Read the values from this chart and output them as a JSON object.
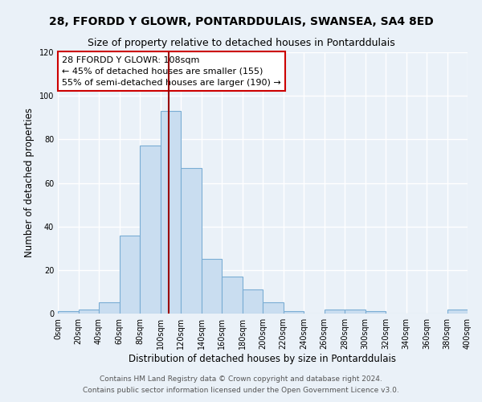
{
  "title": "28, FFORDD Y GLOWR, PONTARDDULAIS, SWANSEA, SA4 8ED",
  "subtitle": "Size of property relative to detached houses in Pontarddulais",
  "xlabel": "Distribution of detached houses by size in Pontarddulais",
  "ylabel": "Number of detached properties",
  "bar_color": "#c9ddf0",
  "bar_edge_color": "#7aadd4",
  "bg_color": "#eaf1f8",
  "grid_color": "#ffffff",
  "bin_edges": [
    0,
    20,
    40,
    60,
    80,
    100,
    120,
    140,
    160,
    180,
    200,
    220,
    240,
    260,
    280,
    300,
    320,
    340,
    360,
    380,
    400
  ],
  "bar_heights": [
    1,
    2,
    5,
    36,
    77,
    93,
    67,
    25,
    17,
    11,
    5,
    1,
    0,
    2,
    2,
    1,
    0,
    0,
    0,
    2
  ],
  "vline_x": 108,
  "vline_color": "#990000",
  "annotation_title": "28 FFORDD Y GLOWR: 108sqm",
  "annotation_line1": "← 45% of detached houses are smaller (155)",
  "annotation_line2": "55% of semi-detached houses are larger (190) →",
  "annotation_box_color": "#ffffff",
  "annotation_box_edge": "#cc0000",
  "ylim": [
    0,
    120
  ],
  "xlim": [
    0,
    400
  ],
  "tick_labels": [
    "0sqm",
    "20sqm",
    "40sqm",
    "60sqm",
    "80sqm",
    "100sqm",
    "120sqm",
    "140sqm",
    "160sqm",
    "180sqm",
    "200sqm",
    "220sqm",
    "240sqm",
    "260sqm",
    "280sqm",
    "300sqm",
    "320sqm",
    "340sqm",
    "360sqm",
    "380sqm",
    "400sqm"
  ],
  "footer1": "Contains HM Land Registry data © Crown copyright and database right 2024.",
  "footer2": "Contains public sector information licensed under the Open Government Licence v3.0.",
  "title_fontsize": 10,
  "subtitle_fontsize": 9,
  "label_fontsize": 8.5,
  "tick_fontsize": 7,
  "annotation_fontsize": 8,
  "footer_fontsize": 6.5
}
